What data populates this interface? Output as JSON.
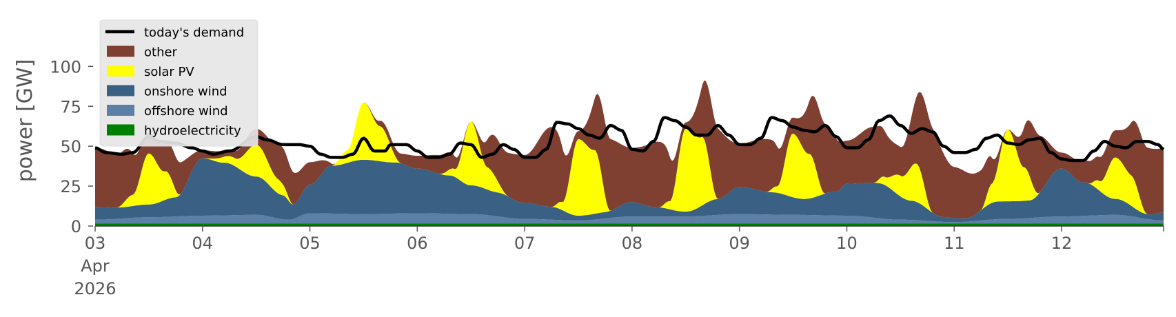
{
  "chart_data": {
    "type": "area",
    "title": "",
    "xlabel": "",
    "ylabel": "power [GW]",
    "ylim": [
      0,
      120
    ],
    "grid": false,
    "legend_placement": "top-left",
    "y_ticks": [
      0,
      25,
      50,
      75,
      100
    ],
    "x_range": [
      0,
      9.95
    ],
    "x_ticks": [
      {
        "x": 0,
        "lines": [
          "03",
          "Apr",
          "2026"
        ]
      },
      {
        "x": 1,
        "lines": [
          "04"
        ]
      },
      {
        "x": 2,
        "lines": [
          "05"
        ]
      },
      {
        "x": 3,
        "lines": [
          "06"
        ]
      },
      {
        "x": 4,
        "lines": [
          "07"
        ]
      },
      {
        "x": 5,
        "lines": [
          "08"
        ]
      },
      {
        "x": 6,
        "lines": [
          "09"
        ]
      },
      {
        "x": 7,
        "lines": [
          "10"
        ]
      },
      {
        "x": 8,
        "lines": [
          "11"
        ]
      },
      {
        "x": 9,
        "lines": [
          "12"
        ]
      }
    ],
    "stack_order": [
      "hydroelectricity",
      "offshore wind",
      "onshore wind",
      "solar PV",
      "other"
    ],
    "series": [
      {
        "name": "hydroelectricity",
        "color": "#008000",
        "points": [
          [
            0,
            1.5
          ],
          [
            1,
            1.5
          ],
          [
            2,
            1.5
          ],
          [
            3,
            1.5
          ],
          [
            4,
            1.5
          ],
          [
            5,
            1.5
          ],
          [
            6,
            1.5
          ],
          [
            7,
            1.5
          ],
          [
            8,
            1.5
          ],
          [
            9,
            1.5
          ],
          [
            9.95,
            1.5
          ]
        ]
      },
      {
        "name": "offshore wind",
        "color": "#5b7fa5",
        "points": [
          [
            0,
            2.5
          ],
          [
            0.5,
            4
          ],
          [
            1,
            5
          ],
          [
            1.5,
            5.5
          ],
          [
            1.8,
            2.5
          ],
          [
            2,
            6.5
          ],
          [
            2.5,
            6
          ],
          [
            3,
            6.5
          ],
          [
            3.5,
            6
          ],
          [
            4,
            3
          ],
          [
            4.5,
            2
          ],
          [
            5,
            4.5
          ],
          [
            5.5,
            4.5
          ],
          [
            6,
            6
          ],
          [
            6.5,
            5.5
          ],
          [
            7,
            5
          ],
          [
            7.5,
            2.5
          ],
          [
            8,
            1
          ],
          [
            8.5,
            3
          ],
          [
            9,
            4.5
          ],
          [
            9.5,
            5.5
          ],
          [
            9.95,
            2
          ]
        ]
      },
      {
        "name": "onshore wind",
        "color": "#3a6083",
        "points": [
          [
            0,
            8
          ],
          [
            0.25,
            7
          ],
          [
            0.5,
            8
          ],
          [
            0.75,
            12
          ],
          [
            1,
            36
          ],
          [
            1.2,
            33
          ],
          [
            1.5,
            24
          ],
          [
            1.75,
            15
          ],
          [
            1.85,
            9
          ],
          [
            2,
            18
          ],
          [
            2.2,
            30
          ],
          [
            2.5,
            34
          ],
          [
            2.8,
            32
          ],
          [
            3,
            28
          ],
          [
            3.3,
            24
          ],
          [
            3.5,
            18
          ],
          [
            3.75,
            15
          ],
          [
            4,
            10
          ],
          [
            4.25,
            8
          ],
          [
            4.5,
            3
          ],
          [
            4.75,
            4
          ],
          [
            5,
            9
          ],
          [
            5.2,
            6
          ],
          [
            5.5,
            3
          ],
          [
            5.8,
            10
          ],
          [
            6,
            17
          ],
          [
            6.3,
            14
          ],
          [
            6.6,
            10
          ],
          [
            6.9,
            15
          ],
          [
            7,
            20
          ],
          [
            7.3,
            22
          ],
          [
            7.6,
            12
          ],
          [
            7.9,
            3
          ],
          [
            8.1,
            2
          ],
          [
            8.4,
            11
          ],
          [
            8.7,
            11
          ],
          [
            9,
            30
          ],
          [
            9.2,
            21
          ],
          [
            9.5,
            10
          ],
          [
            9.8,
            3
          ],
          [
            9.95,
            5
          ]
        ]
      },
      {
        "name": "solar PV",
        "color": "#ffff00",
        "points": [
          [
            0,
            0
          ],
          [
            0.2,
            0
          ],
          [
            0.35,
            7
          ],
          [
            0.5,
            32
          ],
          [
            0.65,
            18
          ],
          [
            0.8,
            0
          ],
          [
            1,
            0
          ],
          [
            1.3,
            5
          ],
          [
            1.5,
            20
          ],
          [
            1.7,
            9
          ],
          [
            1.85,
            0
          ],
          [
            2,
            0
          ],
          [
            2.2,
            0
          ],
          [
            2.35,
            8
          ],
          [
            2.5,
            36
          ],
          [
            2.65,
            22
          ],
          [
            2.85,
            0
          ],
          [
            3,
            0
          ],
          [
            3.2,
            0
          ],
          [
            3.35,
            5
          ],
          [
            3.5,
            40
          ],
          [
            3.65,
            14
          ],
          [
            3.85,
            0
          ],
          [
            4,
            0
          ],
          [
            4.25,
            0
          ],
          [
            4.35,
            5
          ],
          [
            4.5,
            48
          ],
          [
            4.65,
            40
          ],
          [
            4.8,
            0
          ],
          [
            5,
            0
          ],
          [
            5.25,
            0
          ],
          [
            5.35,
            5
          ],
          [
            5.5,
            52
          ],
          [
            5.65,
            43
          ],
          [
            5.8,
            0
          ],
          [
            6,
            0
          ],
          [
            6.25,
            0
          ],
          [
            6.35,
            4
          ],
          [
            6.5,
            40
          ],
          [
            6.65,
            28
          ],
          [
            6.8,
            0
          ],
          [
            7,
            0
          ],
          [
            7.25,
            0
          ],
          [
            7.35,
            5
          ],
          [
            7.5,
            13
          ],
          [
            7.65,
            24
          ],
          [
            7.8,
            0
          ],
          [
            8,
            0
          ],
          [
            8.25,
            0
          ],
          [
            8.35,
            12
          ],
          [
            8.5,
            45
          ],
          [
            8.65,
            21
          ],
          [
            8.8,
            0
          ],
          [
            9,
            0
          ],
          [
            9.25,
            0
          ],
          [
            9.35,
            6
          ],
          [
            9.5,
            26
          ],
          [
            9.65,
            19
          ],
          [
            9.8,
            0
          ],
          [
            9.95,
            0
          ]
        ]
      },
      {
        "name": "other",
        "color": "#7f3f31",
        "points": [
          [
            0,
            37
          ],
          [
            0.25,
            33
          ],
          [
            0.5,
            13
          ],
          [
            0.75,
            21
          ],
          [
            1,
            5
          ],
          [
            1.25,
            4
          ],
          [
            1.5,
            10
          ],
          [
            1.75,
            23
          ],
          [
            2,
            14
          ],
          [
            2.25,
            0
          ],
          [
            2.5,
            0
          ],
          [
            2.75,
            5
          ],
          [
            3,
            8
          ],
          [
            3.25,
            12
          ],
          [
            3.5,
            0
          ],
          [
            3.75,
            26
          ],
          [
            4,
            30
          ],
          [
            4.25,
            50
          ],
          [
            4.5,
            5
          ],
          [
            4.75,
            46
          ],
          [
            5,
            34
          ],
          [
            5.25,
            41
          ],
          [
            5.5,
            4
          ],
          [
            5.75,
            46
          ],
          [
            6,
            27
          ],
          [
            6.25,
            33
          ],
          [
            6.5,
            10
          ],
          [
            6.75,
            45
          ],
          [
            7,
            27
          ],
          [
            7.25,
            35
          ],
          [
            7.5,
            18
          ],
          [
            7.75,
            55
          ],
          [
            8,
            32
          ],
          [
            8.25,
            25
          ],
          [
            8.5,
            0
          ],
          [
            8.75,
            38
          ],
          [
            9,
            10
          ],
          [
            9.25,
            14
          ],
          [
            9.5,
            17
          ],
          [
            9.75,
            42
          ],
          [
            9.95,
            40
          ]
        ]
      },
      {
        "name": "today's demand",
        "color": "#000000",
        "line": true,
        "points": [
          [
            0,
            49
          ],
          [
            0.1,
            46
          ],
          [
            0.25,
            45
          ],
          [
            0.35,
            46
          ],
          [
            0.5,
            56
          ],
          [
            0.6,
            53
          ],
          [
            0.75,
            52
          ],
          [
            0.9,
            49
          ],
          [
            1,
            47
          ],
          [
            1.1,
            45
          ],
          [
            1.25,
            47
          ],
          [
            1.5,
            56
          ],
          [
            1.6,
            54
          ],
          [
            1.75,
            51
          ],
          [
            1.9,
            51
          ],
          [
            2,
            50
          ],
          [
            2.1,
            45
          ],
          [
            2.2,
            43
          ],
          [
            2.3,
            43
          ],
          [
            2.4,
            45
          ],
          [
            2.5,
            55
          ],
          [
            2.6,
            47
          ],
          [
            2.7,
            47
          ],
          [
            2.75,
            51
          ],
          [
            2.9,
            51
          ],
          [
            3,
            47
          ],
          [
            3.1,
            43
          ],
          [
            3.2,
            43
          ],
          [
            3.3,
            45
          ],
          [
            3.4,
            52
          ],
          [
            3.5,
            51
          ],
          [
            3.6,
            43
          ],
          [
            3.7,
            45
          ],
          [
            3.8,
            51
          ],
          [
            3.9,
            48
          ],
          [
            4,
            43
          ],
          [
            4.1,
            43
          ],
          [
            4.2,
            48
          ],
          [
            4.3,
            65
          ],
          [
            4.4,
            64
          ],
          [
            4.5,
            61
          ],
          [
            4.6,
            57
          ],
          [
            4.7,
            55
          ],
          [
            4.8,
            63
          ],
          [
            4.9,
            60
          ],
          [
            5,
            48
          ],
          [
            5.1,
            47
          ],
          [
            5.2,
            53
          ],
          [
            5.3,
            68
          ],
          [
            5.4,
            66
          ],
          [
            5.5,
            62
          ],
          [
            5.6,
            57
          ],
          [
            5.7,
            57
          ],
          [
            5.8,
            63
          ],
          [
            5.9,
            57
          ],
          [
            6,
            51
          ],
          [
            6.1,
            51
          ],
          [
            6.2,
            55
          ],
          [
            6.3,
            68
          ],
          [
            6.4,
            66
          ],
          [
            6.5,
            62
          ],
          [
            6.6,
            60
          ],
          [
            6.7,
            59
          ],
          [
            6.8,
            63
          ],
          [
            6.9,
            56
          ],
          [
            7,
            49
          ],
          [
            7.1,
            49
          ],
          [
            7.2,
            54
          ],
          [
            7.3,
            66
          ],
          [
            7.4,
            69
          ],
          [
            7.5,
            63
          ],
          [
            7.6,
            58
          ],
          [
            7.7,
            61
          ],
          [
            7.8,
            59
          ],
          [
            7.9,
            50
          ],
          [
            8,
            46
          ],
          [
            8.1,
            46
          ],
          [
            8.2,
            48
          ],
          [
            8.3,
            55
          ],
          [
            8.4,
            57
          ],
          [
            8.5,
            52
          ],
          [
            8.6,
            51
          ],
          [
            8.7,
            54
          ],
          [
            8.8,
            55
          ],
          [
            8.9,
            46
          ],
          [
            9,
            42
          ],
          [
            9.1,
            41
          ],
          [
            9.2,
            41
          ],
          [
            9.3,
            47
          ],
          [
            9.4,
            53
          ],
          [
            9.5,
            50
          ],
          [
            9.6,
            49
          ],
          [
            9.7,
            53
          ],
          [
            9.8,
            53
          ],
          [
            9.9,
            51
          ],
          [
            9.95,
            48
          ]
        ]
      }
    ]
  }
}
